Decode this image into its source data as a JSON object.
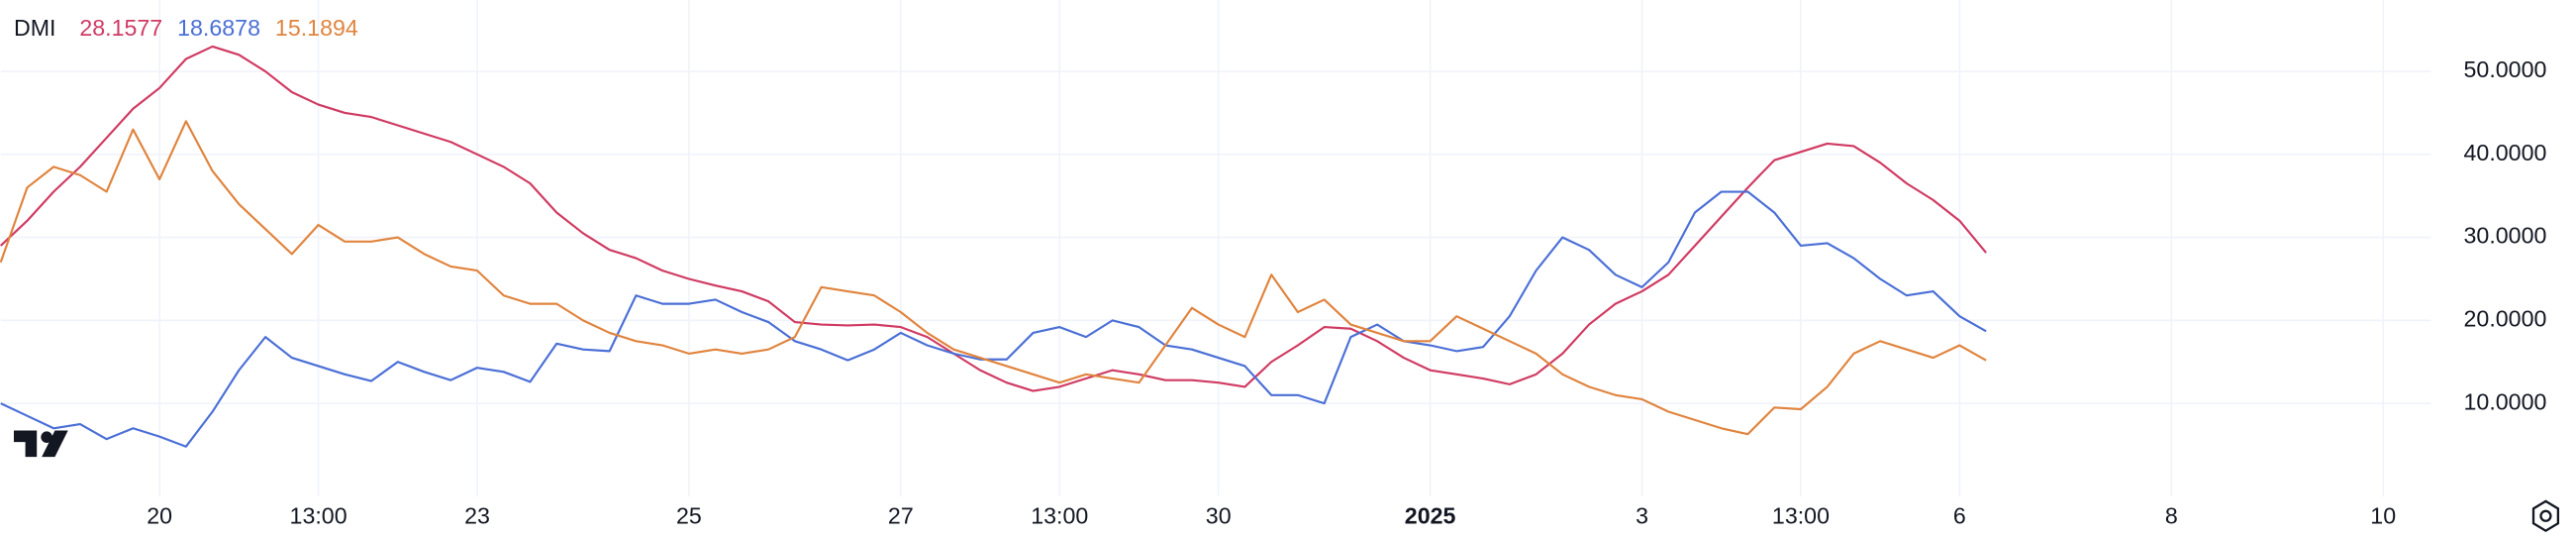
{
  "chart_data": {
    "type": "line",
    "title": "DMI",
    "x": [
      0,
      0.25,
      0.5,
      0.75,
      1,
      1.25,
      1.5,
      1.75,
      2,
      2.25,
      2.5,
      2.75,
      3,
      3.25,
      3.5,
      3.75,
      4,
      4.25,
      4.5,
      4.75,
      5,
      5.25,
      5.5,
      5.75,
      6,
      6.25,
      6.5,
      6.75,
      7,
      7.25,
      7.5,
      7.75,
      8,
      8.25,
      8.5,
      8.75,
      9,
      9.25,
      9.5,
      9.75,
      10,
      10.25,
      10.5,
      10.75,
      11,
      11.25,
      11.5,
      11.75,
      12,
      12.25,
      12.5,
      12.75,
      13,
      13.25,
      13.5,
      13.75,
      14,
      14.25,
      14.5,
      14.75,
      15,
      15.25,
      15.5,
      15.75,
      16,
      16.25,
      16.5,
      16.75,
      17,
      17.25,
      17.5,
      17.75,
      18,
      18.25,
      18.5,
      18.75
    ],
    "series": [
      {
        "color": "#d03a62",
        "values": [
          29,
          32,
          35.5,
          38.5,
          42,
          45.5,
          48,
          51.5,
          53,
          52,
          50,
          47.5,
          46,
          45,
          44.5,
          43.5,
          42.5,
          41.5,
          40,
          38.5,
          36.5,
          33,
          30.5,
          28.5,
          27.5,
          26,
          25,
          24.2,
          23.5,
          22.3,
          19.8,
          19.5,
          19.4,
          19.5,
          19.2,
          18,
          16,
          14,
          12.5,
          11.5,
          12,
          13,
          14,
          13.5,
          12.8,
          12.8,
          12.5,
          12,
          15,
          17,
          19.2,
          19,
          17.5,
          15.5,
          14,
          13.5,
          13,
          12.3,
          13.5,
          16,
          19.5,
          22,
          23.5,
          25.5,
          29,
          32.5,
          36,
          39.3,
          40.3,
          41.3,
          41,
          39,
          36.5,
          34.5,
          32,
          28.1577
        ]
      },
      {
        "color": "#4a6fd6",
        "values": [
          10,
          8.5,
          7,
          7.5,
          5.7,
          7,
          6,
          4.8,
          9,
          14,
          18,
          15.5,
          14.5,
          13.5,
          12.7,
          15,
          13.8,
          12.8,
          14.3,
          13.8,
          12.6,
          17.2,
          16.5,
          16.3,
          23,
          22,
          22,
          22.5,
          21,
          19.8,
          17.5,
          16.5,
          15.2,
          16.5,
          18.5,
          17,
          16,
          15.3,
          15.3,
          18.5,
          19.2,
          18,
          20,
          19.2,
          17,
          16.5,
          15.5,
          14.5,
          11,
          11,
          10,
          18,
          19.5,
          17.5,
          17,
          16.3,
          16.8,
          20.5,
          26,
          30,
          28.5,
          25.5,
          24,
          27,
          33,
          35.5,
          35.5,
          33,
          29,
          29.3,
          27.5,
          25,
          23,
          23.5,
          20.5,
          18.6878
        ]
      },
      {
        "color": "#e0843e",
        "values": [
          27,
          36,
          38.5,
          37.5,
          35.5,
          43,
          37,
          44,
          38,
          34,
          31,
          28,
          31.5,
          29.5,
          29.5,
          30,
          28,
          26.5,
          26,
          23,
          22,
          22,
          20,
          18.5,
          17.5,
          17,
          16,
          16.5,
          16,
          16.5,
          18,
          24,
          23.5,
          23,
          21,
          18.5,
          16.5,
          15.5,
          14.5,
          13.5,
          12.5,
          13.5,
          13,
          12.5,
          17,
          21.5,
          19.5,
          18,
          25.5,
          21,
          22.5,
          19.5,
          18.5,
          17.5,
          17.5,
          20.5,
          19,
          17.5,
          16,
          13.5,
          12,
          11,
          10.5,
          9,
          8,
          7,
          6.3,
          9.5,
          9.3,
          12,
          16,
          17.5,
          16.5,
          15.5,
          17,
          15.1894
        ]
      }
    ],
    "xlim": [
      0,
      22.95
    ],
    "xticks": [
      {
        "value": 1.5,
        "label": "20"
      },
      {
        "value": 3,
        "label": "13:00"
      },
      {
        "value": 4.5,
        "label": "23"
      },
      {
        "value": 6.5,
        "label": "25"
      },
      {
        "value": 8.5,
        "label": "27"
      },
      {
        "value": 10,
        "label": "13:00"
      },
      {
        "value": 11.5,
        "label": "30"
      },
      {
        "value": 13.5,
        "label": "2025"
      },
      {
        "value": 15.5,
        "label": "3"
      },
      {
        "value": 17,
        "label": "13:00"
      },
      {
        "value": 18.5,
        "label": "6"
      },
      {
        "value": 20.5,
        "label": "8"
      },
      {
        "value": 22.5,
        "label": "10"
      }
    ],
    "ylim": [
      0,
      58.6
    ],
    "yticks": [
      {
        "value": 10,
        "label": "10.0000"
      },
      {
        "value": 20,
        "label": "20.0000"
      },
      {
        "value": 30,
        "label": "30.0000"
      },
      {
        "value": 40,
        "label": "40.0000"
      },
      {
        "value": 50,
        "label": "50.0000"
      }
    ],
    "grid": true
  }
}
